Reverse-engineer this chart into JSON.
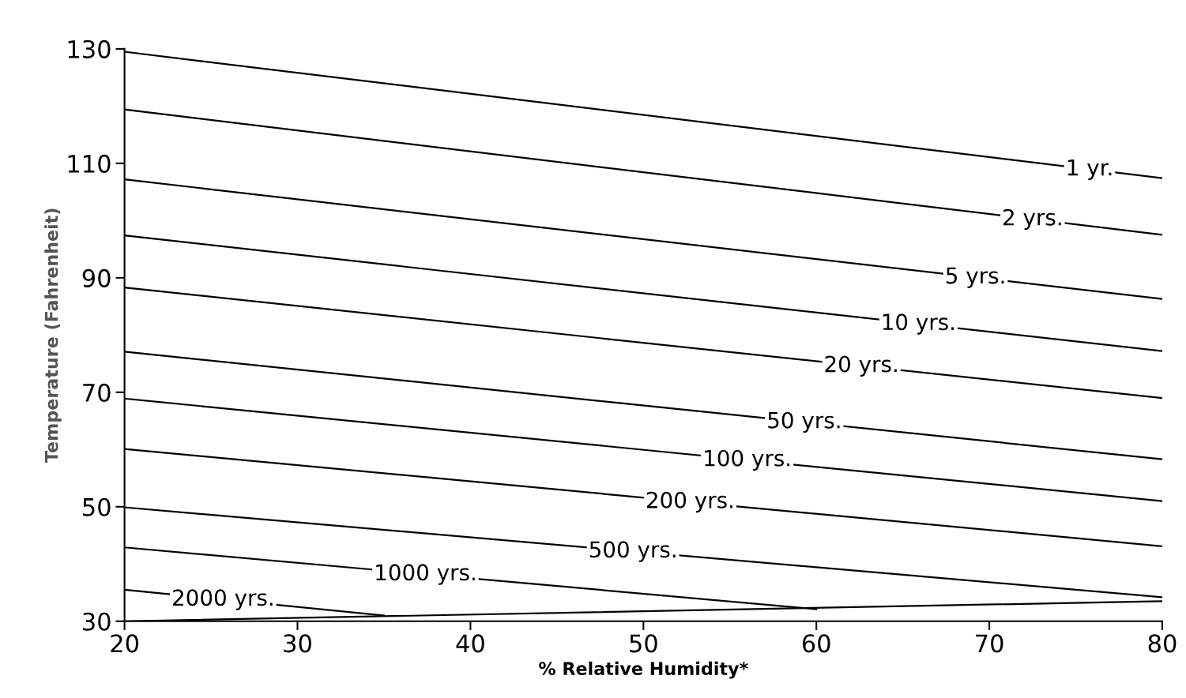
{
  "chart_data": {
    "type": "line",
    "xlabel": "% Relative Humidity*",
    "ylabel": "Temperature (Fahrenheit)",
    "xlim": [
      20,
      80
    ],
    "ylim": [
      30,
      130
    ],
    "xticks": [
      20,
      30,
      40,
      50,
      60,
      70,
      80
    ],
    "yticks": [
      30,
      50,
      70,
      90,
      110,
      130
    ],
    "grid": false,
    "legend": false,
    "marker": "none",
    "line_style": "solid",
    "series": [
      {
        "name": "1 yr.",
        "color": "#000000",
        "x": [
          20,
          80
        ],
        "values": [
          129.5,
          107.4
        ]
      },
      {
        "name": "2 yrs.",
        "color": "#000000",
        "x": [
          20,
          80
        ],
        "values": [
          119.4,
          97.5
        ]
      },
      {
        "name": "5 yrs.",
        "color": "#000000",
        "x": [
          20,
          80
        ],
        "values": [
          107.2,
          86.3
        ]
      },
      {
        "name": "10 yrs.",
        "color": "#000000",
        "x": [
          20,
          80
        ],
        "values": [
          97.4,
          77.2
        ]
      },
      {
        "name": "20 yrs.",
        "color": "#000000",
        "x": [
          20,
          80
        ],
        "values": [
          88.3,
          69.0
        ]
      },
      {
        "name": "50 yrs.",
        "color": "#000000",
        "x": [
          20,
          80
        ],
        "values": [
          77.1,
          58.3
        ]
      },
      {
        "name": "100 yrs.",
        "color": "#000000",
        "x": [
          20,
          80
        ],
        "values": [
          68.9,
          51.0
        ]
      },
      {
        "name": "200 yrs.",
        "color": "#000000",
        "x": [
          20,
          80
        ],
        "values": [
          60.1,
          43.1
        ]
      },
      {
        "name": "500 yrs.",
        "color": "#000000",
        "x": [
          20,
          80
        ],
        "values": [
          49.9,
          34.2
        ]
      },
      {
        "name": "1000 yrs.",
        "color": "#000000",
        "x": [
          20,
          60
        ],
        "values": [
          42.9,
          32.1
        ]
      },
      {
        "name": "2000 yrs.",
        "color": "#000000",
        "x": [
          20,
          35
        ],
        "values": [
          35.5,
          31.0
        ]
      },
      {
        "color": "#000000",
        "x": [
          20,
          80
        ],
        "values": [
          30.0,
          33.5
        ]
      }
    ]
  }
}
